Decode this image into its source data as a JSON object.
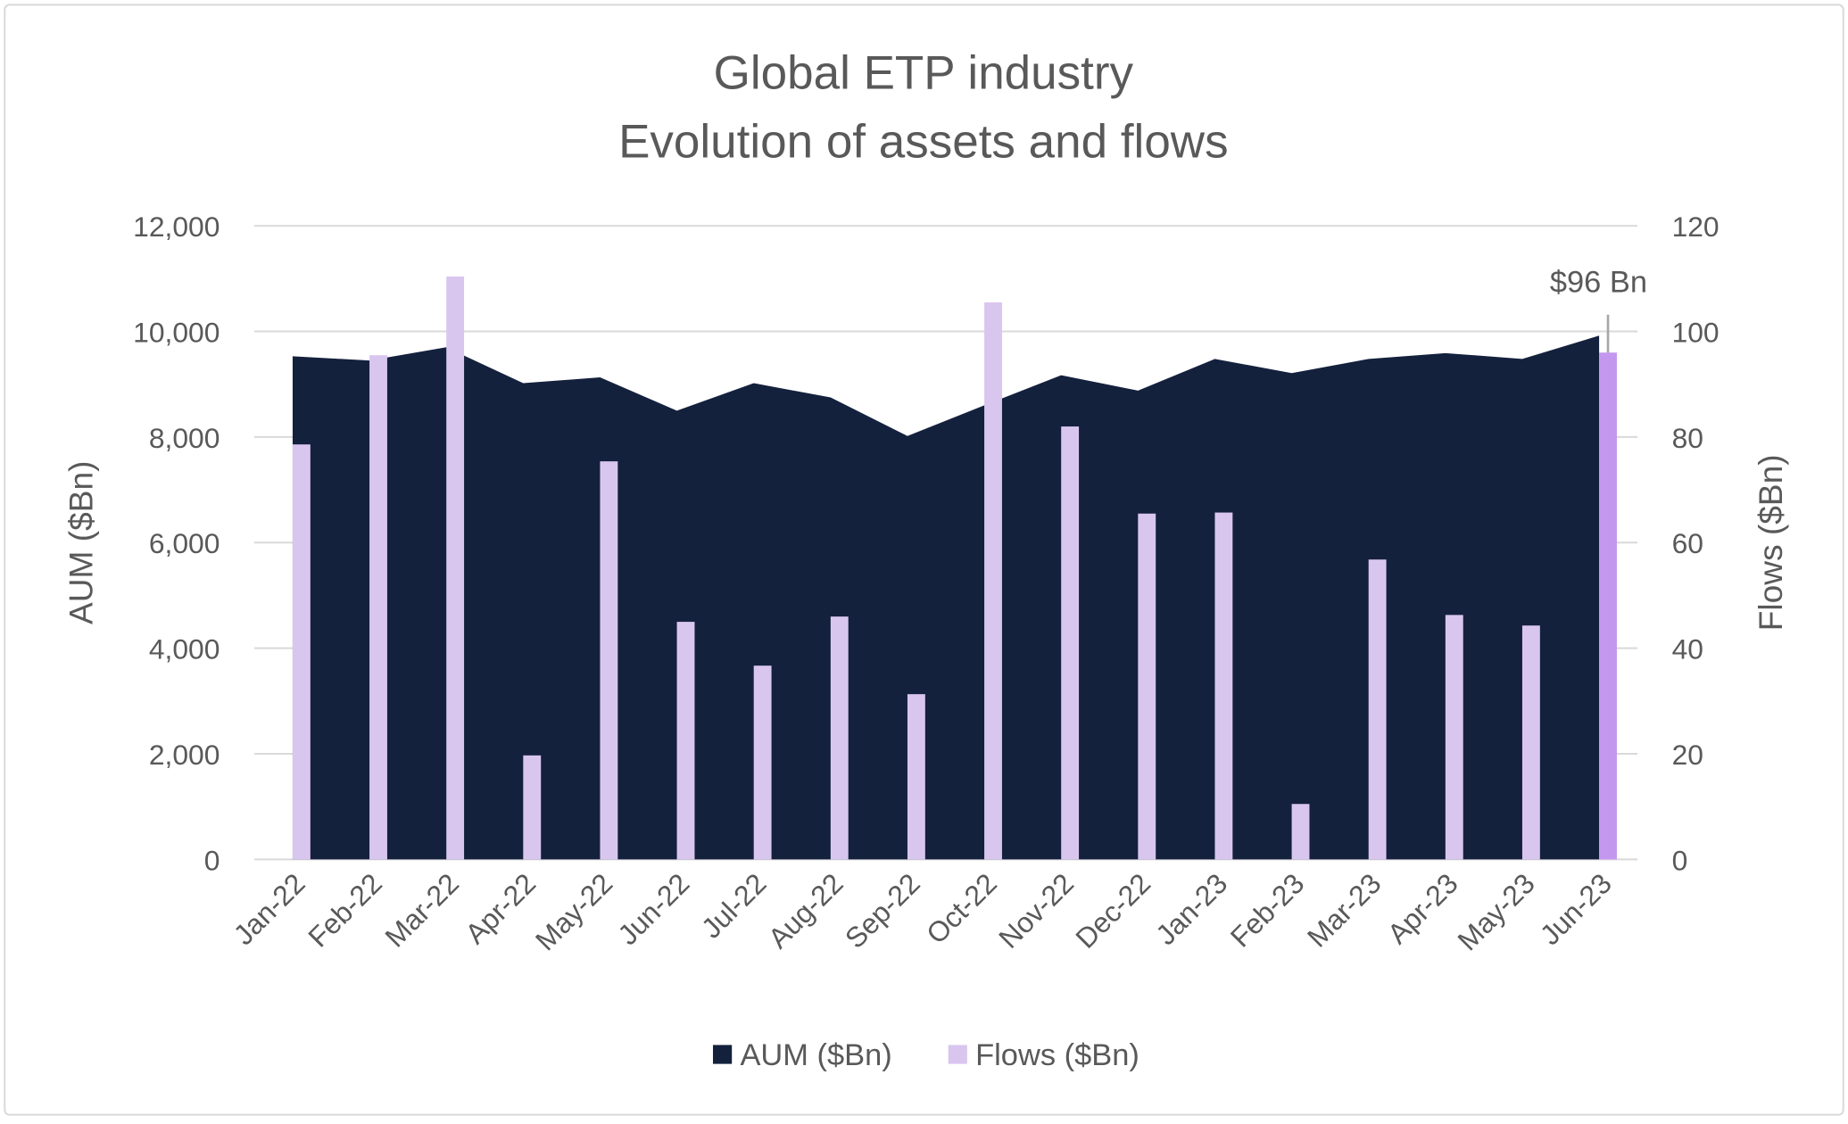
{
  "chart_data": {
    "type": "bar",
    "title": [
      "Global ETP industry",
      "Evolution of assets and flows"
    ],
    "categories": [
      "Jan-22",
      "Feb-22",
      "Mar-22",
      "Apr-22",
      "May-22",
      "Jun-22",
      "Jul-22",
      "Aug-22",
      "Sep-22",
      "Oct-22",
      "Nov-22",
      "Dec-22",
      "Jan-23",
      "Feb-23",
      "Mar-23",
      "Apr-23",
      "May-23",
      "Jun-23"
    ],
    "series": [
      {
        "name": "AUM ($Bn)",
        "type": "area",
        "axis": "left",
        "color": "#14213d",
        "values": [
          9530,
          9450,
          9700,
          9020,
          9130,
          8500,
          9020,
          8750,
          8020,
          8600,
          9170,
          8880,
          9480,
          9210,
          9480,
          9590,
          9480,
          9920
        ]
      },
      {
        "name": "Flows ($Bn)",
        "type": "bar",
        "axis": "right",
        "color": "#d9c6ef",
        "highlight_color": "#c497ef",
        "values": [
          78.6,
          95.5,
          110.4,
          19.7,
          75.4,
          45.0,
          36.7,
          46.0,
          31.3,
          105.5,
          82.0,
          65.5,
          65.7,
          10.5,
          56.8,
          46.3,
          44.3,
          96.0
        ]
      }
    ],
    "ylabel": "AUM ($Bn)",
    "y2label": "Flows ($Bn)",
    "ylim": [
      0,
      12000
    ],
    "y2lim": [
      0,
      120
    ],
    "yticks": [
      "0",
      "2,000",
      "4,000",
      "6,000",
      "8,000",
      "10,000",
      "12,000"
    ],
    "y2ticks": [
      "0",
      "20",
      "40",
      "60",
      "80",
      "100",
      "120"
    ],
    "grid": true,
    "legend": "bottom",
    "annotation": {
      "label": "$96 Bn",
      "category": "Jun-23"
    }
  }
}
